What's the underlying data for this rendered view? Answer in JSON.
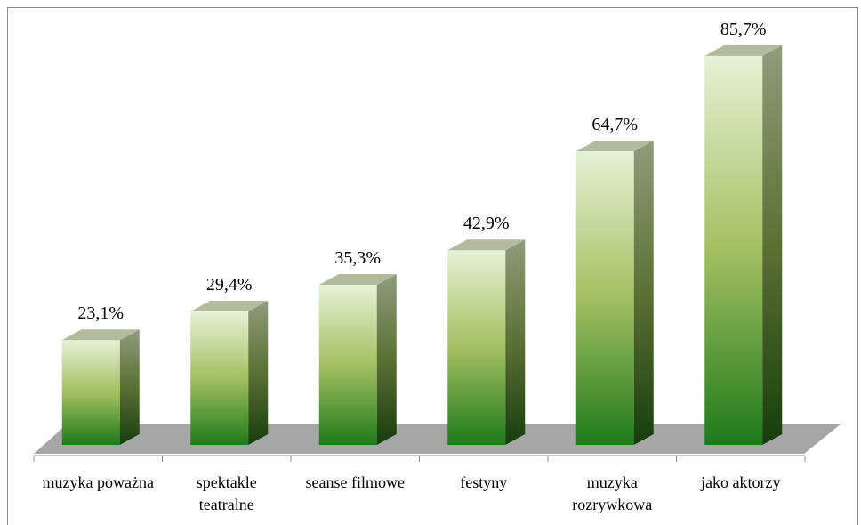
{
  "chart_data": {
    "type": "bar3d",
    "categories": [
      "muzyka poważna",
      "spektakle teatralne",
      "seanse filmowe",
      "festyny",
      "muzyka rozrywkowa",
      "jako aktorzy"
    ],
    "values": [
      23.1,
      29.4,
      35.3,
      42.9,
      64.7,
      85.7
    ],
    "value_labels": [
      "23,1%",
      "29,4%",
      "35,3%",
      "42,9%",
      "64,7%",
      "85,7%"
    ],
    "color": "#2a8a22"
  }
}
